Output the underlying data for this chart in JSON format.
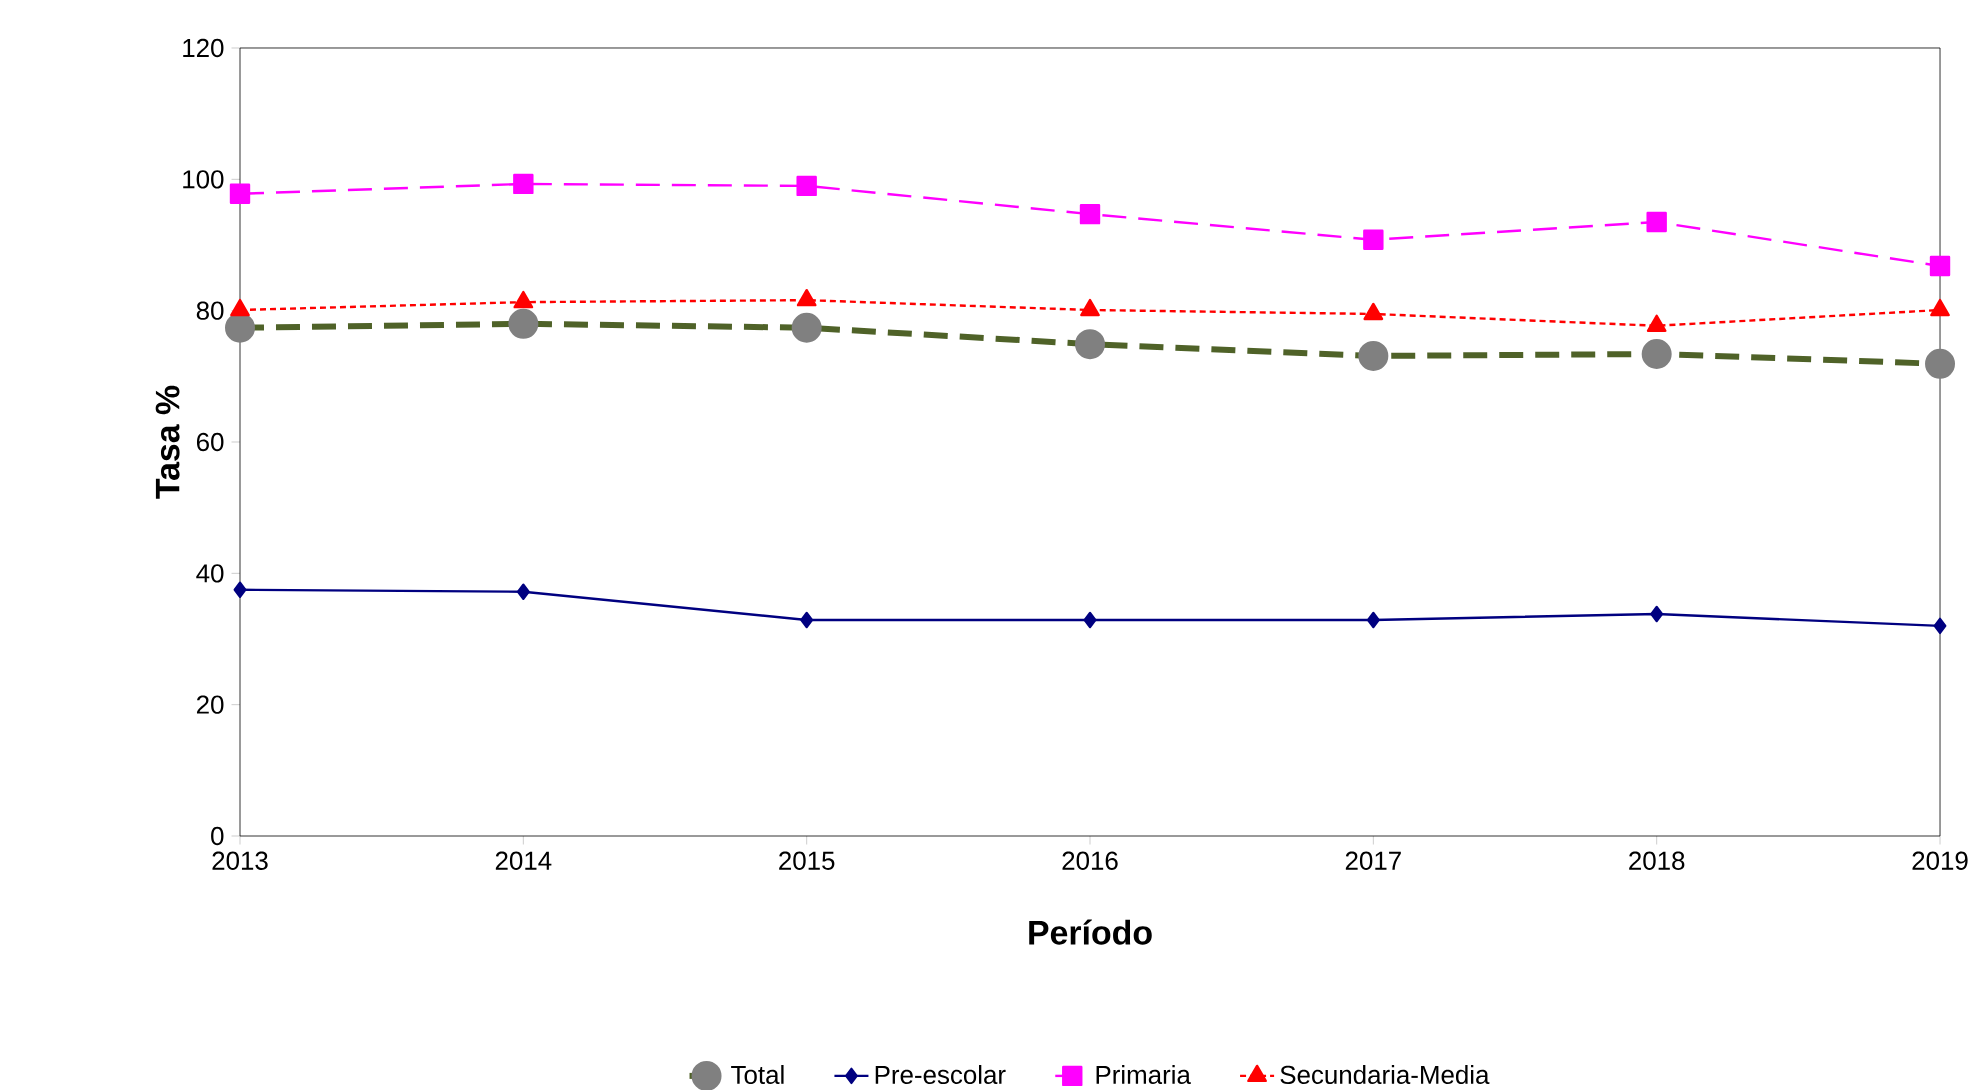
{
  "chart_data": {
    "type": "line",
    "xlabel": "Período",
    "ylabel": "Tasa %",
    "x": [
      2013,
      2014,
      2015,
      2016,
      2017,
      2018,
      2019
    ],
    "xlim": [
      2013,
      2019
    ],
    "xticks": [
      2013,
      2014,
      2015,
      2016,
      2017,
      2018,
      2019
    ],
    "ylim": [
      0,
      120
    ],
    "yticks": [
      0,
      20,
      40,
      60,
      80,
      100,
      120
    ],
    "grid": false,
    "legend": "bottom",
    "series": [
      {
        "name": "Total",
        "color": "#4f6228",
        "line_style": "dashed",
        "marker": "circle",
        "values": [
          77.4,
          78,
          77.4,
          74.9,
          73.1,
          73.4,
          71.9
        ]
      },
      {
        "name": "Pre-escolar",
        "color": "#000080",
        "line_style": "solid",
        "marker": "diamond",
        "values": [
          37.5,
          37.2,
          32.9,
          32.9,
          32.9,
          33.8,
          32
        ]
      },
      {
        "name": "Primaria",
        "color": "#ff00ff",
        "line_style": "dashed",
        "marker": "square",
        "values": [
          97.8,
          99.3,
          99,
          94.7,
          90.8,
          93.5,
          86.8
        ]
      },
      {
        "name": "Secundaria-Media",
        "color": "#ff0000",
        "line_style": "dotted",
        "marker": "triangle",
        "values": [
          80.1,
          81.3,
          81.6,
          80.1,
          79.5,
          77.7,
          80.1
        ]
      }
    ]
  }
}
